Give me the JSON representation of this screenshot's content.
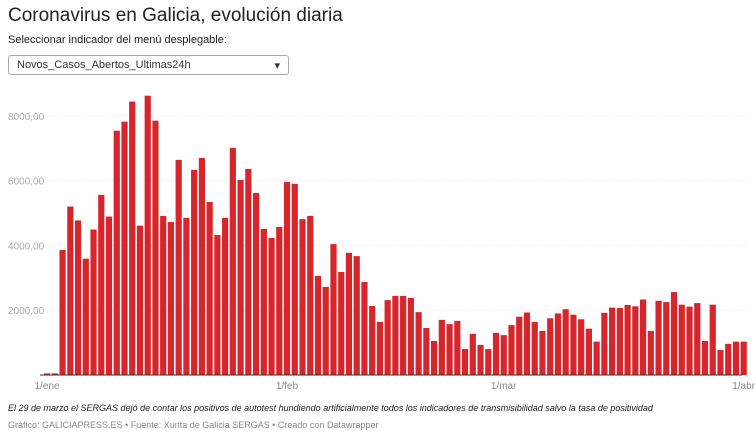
{
  "title": "Coronavirus en Galicia, evolución diaria",
  "subtitle": "Seleccionar indicador del menú desplegable:",
  "select": {
    "value": "Novos_Casos_Abertos_Ultimas24h",
    "icon": "chevron-down-icon"
  },
  "note": "El 29 de marzo el SERGAS dejó de contar los positivos de autotest hundiendo artificialmente todos los indicadores de transmisibilidad salvo la tasa de positividad",
  "credit": "Gráfico: GALICIAPRESS.ES • Fuente: Xunta de Galicia SERGAS • Creado con Datawrapper",
  "chart_data": {
    "type": "bar",
    "color": "#d7262b",
    "ylim": [
      0,
      8800
    ],
    "grid": true,
    "yticks": [
      {
        "v": 2000,
        "label": "2000,00"
      },
      {
        "v": 4000,
        "label": "4000,00"
      },
      {
        "v": 6000,
        "label": "6000,00"
      },
      {
        "v": 8000,
        "label": "8000,00"
      }
    ],
    "xticks": [
      {
        "day": 0,
        "label": "1/ene"
      },
      {
        "day": 31,
        "label": "1/feb"
      },
      {
        "day": 59,
        "label": "1/mar"
      },
      {
        "day": 90,
        "label": "1/abr"
      }
    ],
    "start": "1/ene",
    "values": [
      50,
      50,
      3860,
      5200,
      4770,
      3590,
      4490,
      5560,
      4890,
      7540,
      7820,
      8440,
      4610,
      8620,
      7850,
      4910,
      4720,
      6640,
      4850,
      6330,
      6700,
      5340,
      4320,
      4850,
      7010,
      6020,
      6360,
      5620,
      4510,
      4230,
      4570,
      5960,
      5900,
      4810,
      4910,
      3060,
      2720,
      4040,
      3180,
      3770,
      3670,
      2870,
      2130,
      1640,
      2310,
      2440,
      2440,
      2380,
      1940,
      1450,
      1050,
      1700,
      1570,
      1670,
      800,
      1270,
      930,
      800,
      1300,
      1230,
      1540,
      1800,
      1930,
      1640,
      1360,
      1750,
      1900,
      2030,
      1860,
      1720,
      1430,
      1030,
      1920,
      2080,
      2070,
      2160,
      2120,
      2330,
      1360,
      2290,
      2250,
      2560,
      2170,
      2110,
      2220,
      1050,
      2170,
      770,
      960,
      1030,
      1030
    ]
  }
}
